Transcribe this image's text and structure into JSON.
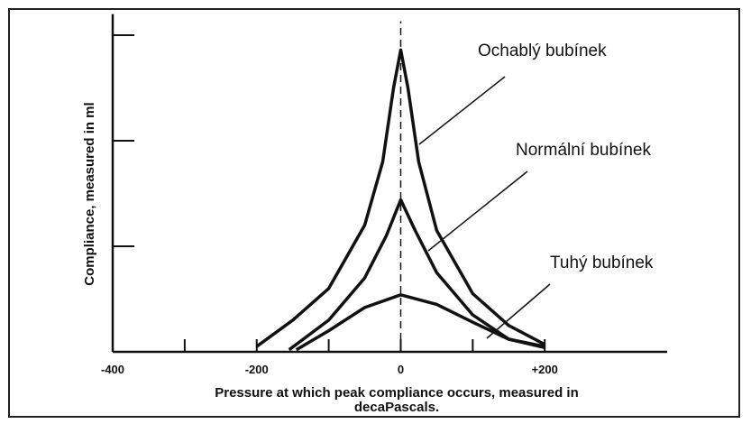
{
  "chart_data": {
    "type": "line",
    "xlabel": [
      "Pressure at which peak compliance occurs, measured in",
      "decaPascals."
    ],
    "ylabel": "Compliance, measured in ml",
    "xlim": [
      -400,
      370
    ],
    "ylim": [
      0,
      3.2
    ],
    "xticks": [
      -400,
      -200,
      0,
      {
        "value": 200,
        "label": "+200"
      }
    ],
    "xminor": [
      -300,
      -100,
      100
    ],
    "yminor": [
      1,
      2,
      3
    ],
    "color": "#111111",
    "series": [
      {
        "name": "Ochablý bubínek",
        "x": [
          -200,
          -150,
          -100,
          -50,
          -25,
          -10,
          0,
          10,
          25,
          50,
          100,
          150,
          200
        ],
        "values": [
          0.05,
          0.3,
          0.6,
          1.2,
          1.8,
          2.5,
          2.86,
          2.5,
          1.8,
          1.15,
          0.55,
          0.25,
          0.07
        ]
      },
      {
        "name": "Normální bubínek",
        "x": [
          -155,
          -100,
          -50,
          -20,
          0,
          20,
          50,
          100,
          150,
          200
        ],
        "values": [
          0.02,
          0.3,
          0.7,
          1.1,
          1.44,
          1.15,
          0.75,
          0.35,
          0.12,
          0.05
        ]
      },
      {
        "name": "Tuhý bubínek",
        "x": [
          -145,
          -100,
          -50,
          0,
          50,
          100,
          150,
          200
        ],
        "values": [
          0.02,
          0.2,
          0.42,
          0.54,
          0.45,
          0.28,
          0.12,
          0.04
        ]
      }
    ]
  }
}
